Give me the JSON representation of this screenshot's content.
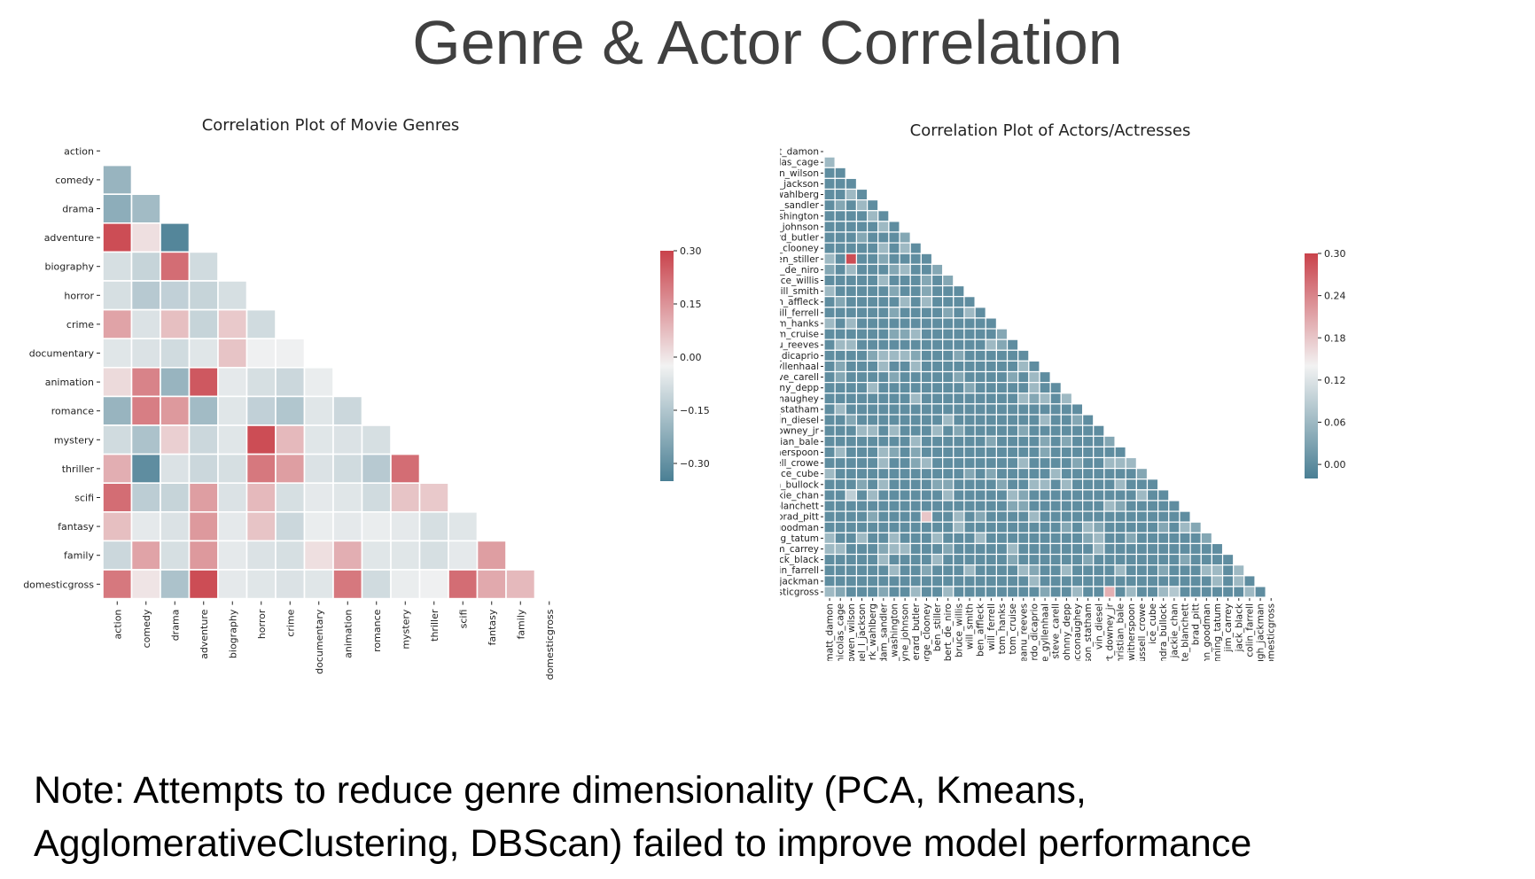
{
  "slide": {
    "title": "Genre & Actor Correlation",
    "note_line1": "Note:  Attempts to reduce genre dimensionality (PCA, Kmeans,",
    "note_line2": "AgglomerativeClustering, DBScan)  failed to improve model performance"
  },
  "colors": {
    "low": "#4a7f94",
    "mid": "#f2f2f2",
    "high": "#c9424b"
  },
  "chart_data": [
    {
      "type": "heatmap",
      "title": "Correlation Plot of Movie Genres",
      "mask": "upper-triangle",
      "labels": [
        "action",
        "comedy",
        "drama",
        "adventure",
        "biography",
        "horror",
        "crime",
        "documentary",
        "animation",
        "romance",
        "mystery",
        "thriller",
        "scifi",
        "fantasy",
        "family",
        "domesticgross"
      ],
      "vmin": -0.35,
      "vmax": 0.3,
      "colorbar_ticks": [
        "0.30",
        "0.15",
        "0.00",
        "−0.15",
        "−0.30"
      ],
      "colorbar_tick_values": [
        0.3,
        0.15,
        0.0,
        -0.15,
        -0.3
      ],
      "values": [
        [],
        [
          -0.2
        ],
        [
          -0.22,
          -0.18
        ],
        [
          0.28,
          0.01,
          -0.33
        ],
        [
          -0.08,
          -0.11,
          0.22,
          -0.09
        ],
        [
          -0.08,
          -0.14,
          -0.12,
          -0.11,
          -0.08
        ],
        [
          0.12,
          -0.07,
          0.07,
          -0.11,
          0.05,
          -0.09
        ],
        [
          -0.06,
          -0.07,
          -0.09,
          -0.06,
          0.06,
          -0.03,
          -0.03
        ],
        [
          0.02,
          0.18,
          -0.2,
          0.26,
          -0.05,
          -0.08,
          -0.1,
          -0.04
        ],
        [
          -0.2,
          0.19,
          0.14,
          -0.18,
          -0.06,
          -0.12,
          -0.15,
          -0.06,
          -0.1
        ],
        [
          -0.09,
          -0.16,
          0.04,
          -0.1,
          -0.06,
          0.28,
          0.08,
          -0.06,
          -0.07,
          -0.08
        ],
        [
          0.1,
          -0.31,
          -0.07,
          -0.1,
          -0.08,
          0.2,
          0.13,
          -0.07,
          -0.09,
          -0.14,
          0.22
        ],
        [
          0.22,
          -0.13,
          -0.11,
          0.13,
          -0.07,
          0.08,
          -0.08,
          -0.05,
          -0.06,
          -0.09,
          0.06,
          0.05
        ],
        [
          0.07,
          -0.05,
          -0.07,
          0.14,
          -0.05,
          0.06,
          -0.1,
          -0.04,
          -0.05,
          -0.04,
          -0.05,
          -0.08,
          -0.06
        ],
        [
          -0.1,
          0.12,
          -0.08,
          0.14,
          -0.05,
          -0.07,
          -0.08,
          0.01,
          0.1,
          -0.06,
          -0.06,
          -0.08,
          -0.05,
          0.13
        ],
        [
          0.2,
          0.0,
          -0.16,
          0.28,
          -0.05,
          -0.06,
          -0.07,
          -0.06,
          0.2,
          -0.09,
          -0.04,
          -0.03,
          0.22,
          0.11,
          0.08
        ]
      ]
    },
    {
      "type": "heatmap",
      "title": "Correlation Plot of Actors/Actresses",
      "mask": "upper-triangle",
      "labels": [
        "matt_damon",
        "nicolas_cage",
        "owen_wilson",
        "samuel_l_jackson",
        "mark_wahlberg",
        "adam_sandler",
        "denzel_washington",
        "dwayne_johnson",
        "gerard_butler",
        "george_clooney",
        "ben_stiller",
        "robert_de_niro",
        "bruce_willis",
        "will_smith",
        "ben_affleck",
        "will_ferrell",
        "tom_hanks",
        "tom_cruise",
        "keanu_reeves",
        "leonardo_dicaprio",
        "jake_gyllenhaal",
        "steve_carell",
        "johnny_depp",
        "matthew_mcconaughey",
        "jason_statham",
        "vin_diesel",
        "robert_downey_jr",
        "christian_bale",
        "reese_witherspoon",
        "russell_crowe",
        "ice_cube",
        "sandra_bullock",
        "jackie_chan",
        "cate_blanchett",
        "brad_pitt",
        "john_goodman",
        "channing_tatum",
        "jim_carrey",
        "jack_black",
        "colin_farrell",
        "hugh_jackman",
        "domesticgross"
      ],
      "vmin": -0.02,
      "vmax": 0.3,
      "colorbar_ticks": [
        "0.30",
        "0.24",
        "0.18",
        "0.12",
        "0.06",
        "0.00"
      ],
      "colorbar_tick_values": [
        0.3,
        0.24,
        0.18,
        0.12,
        0.06,
        0.0
      ],
      "highlights": [
        {
          "row": "ben_stiller",
          "col": "owen_wilson",
          "value": 0.29
        },
        {
          "row": "jackie_chan",
          "col": "owen_wilson",
          "value": 0.09
        },
        {
          "row": "brad_pitt",
          "col": "george_clooney",
          "value": 0.18
        },
        {
          "row": "domesticgross",
          "col": "robert_downey_jr",
          "value": 0.2
        },
        {
          "row": "domesticgross",
          "col": "jackie_chan",
          "value": 0.08
        }
      ],
      "baseline_value": 0.0
    }
  ]
}
